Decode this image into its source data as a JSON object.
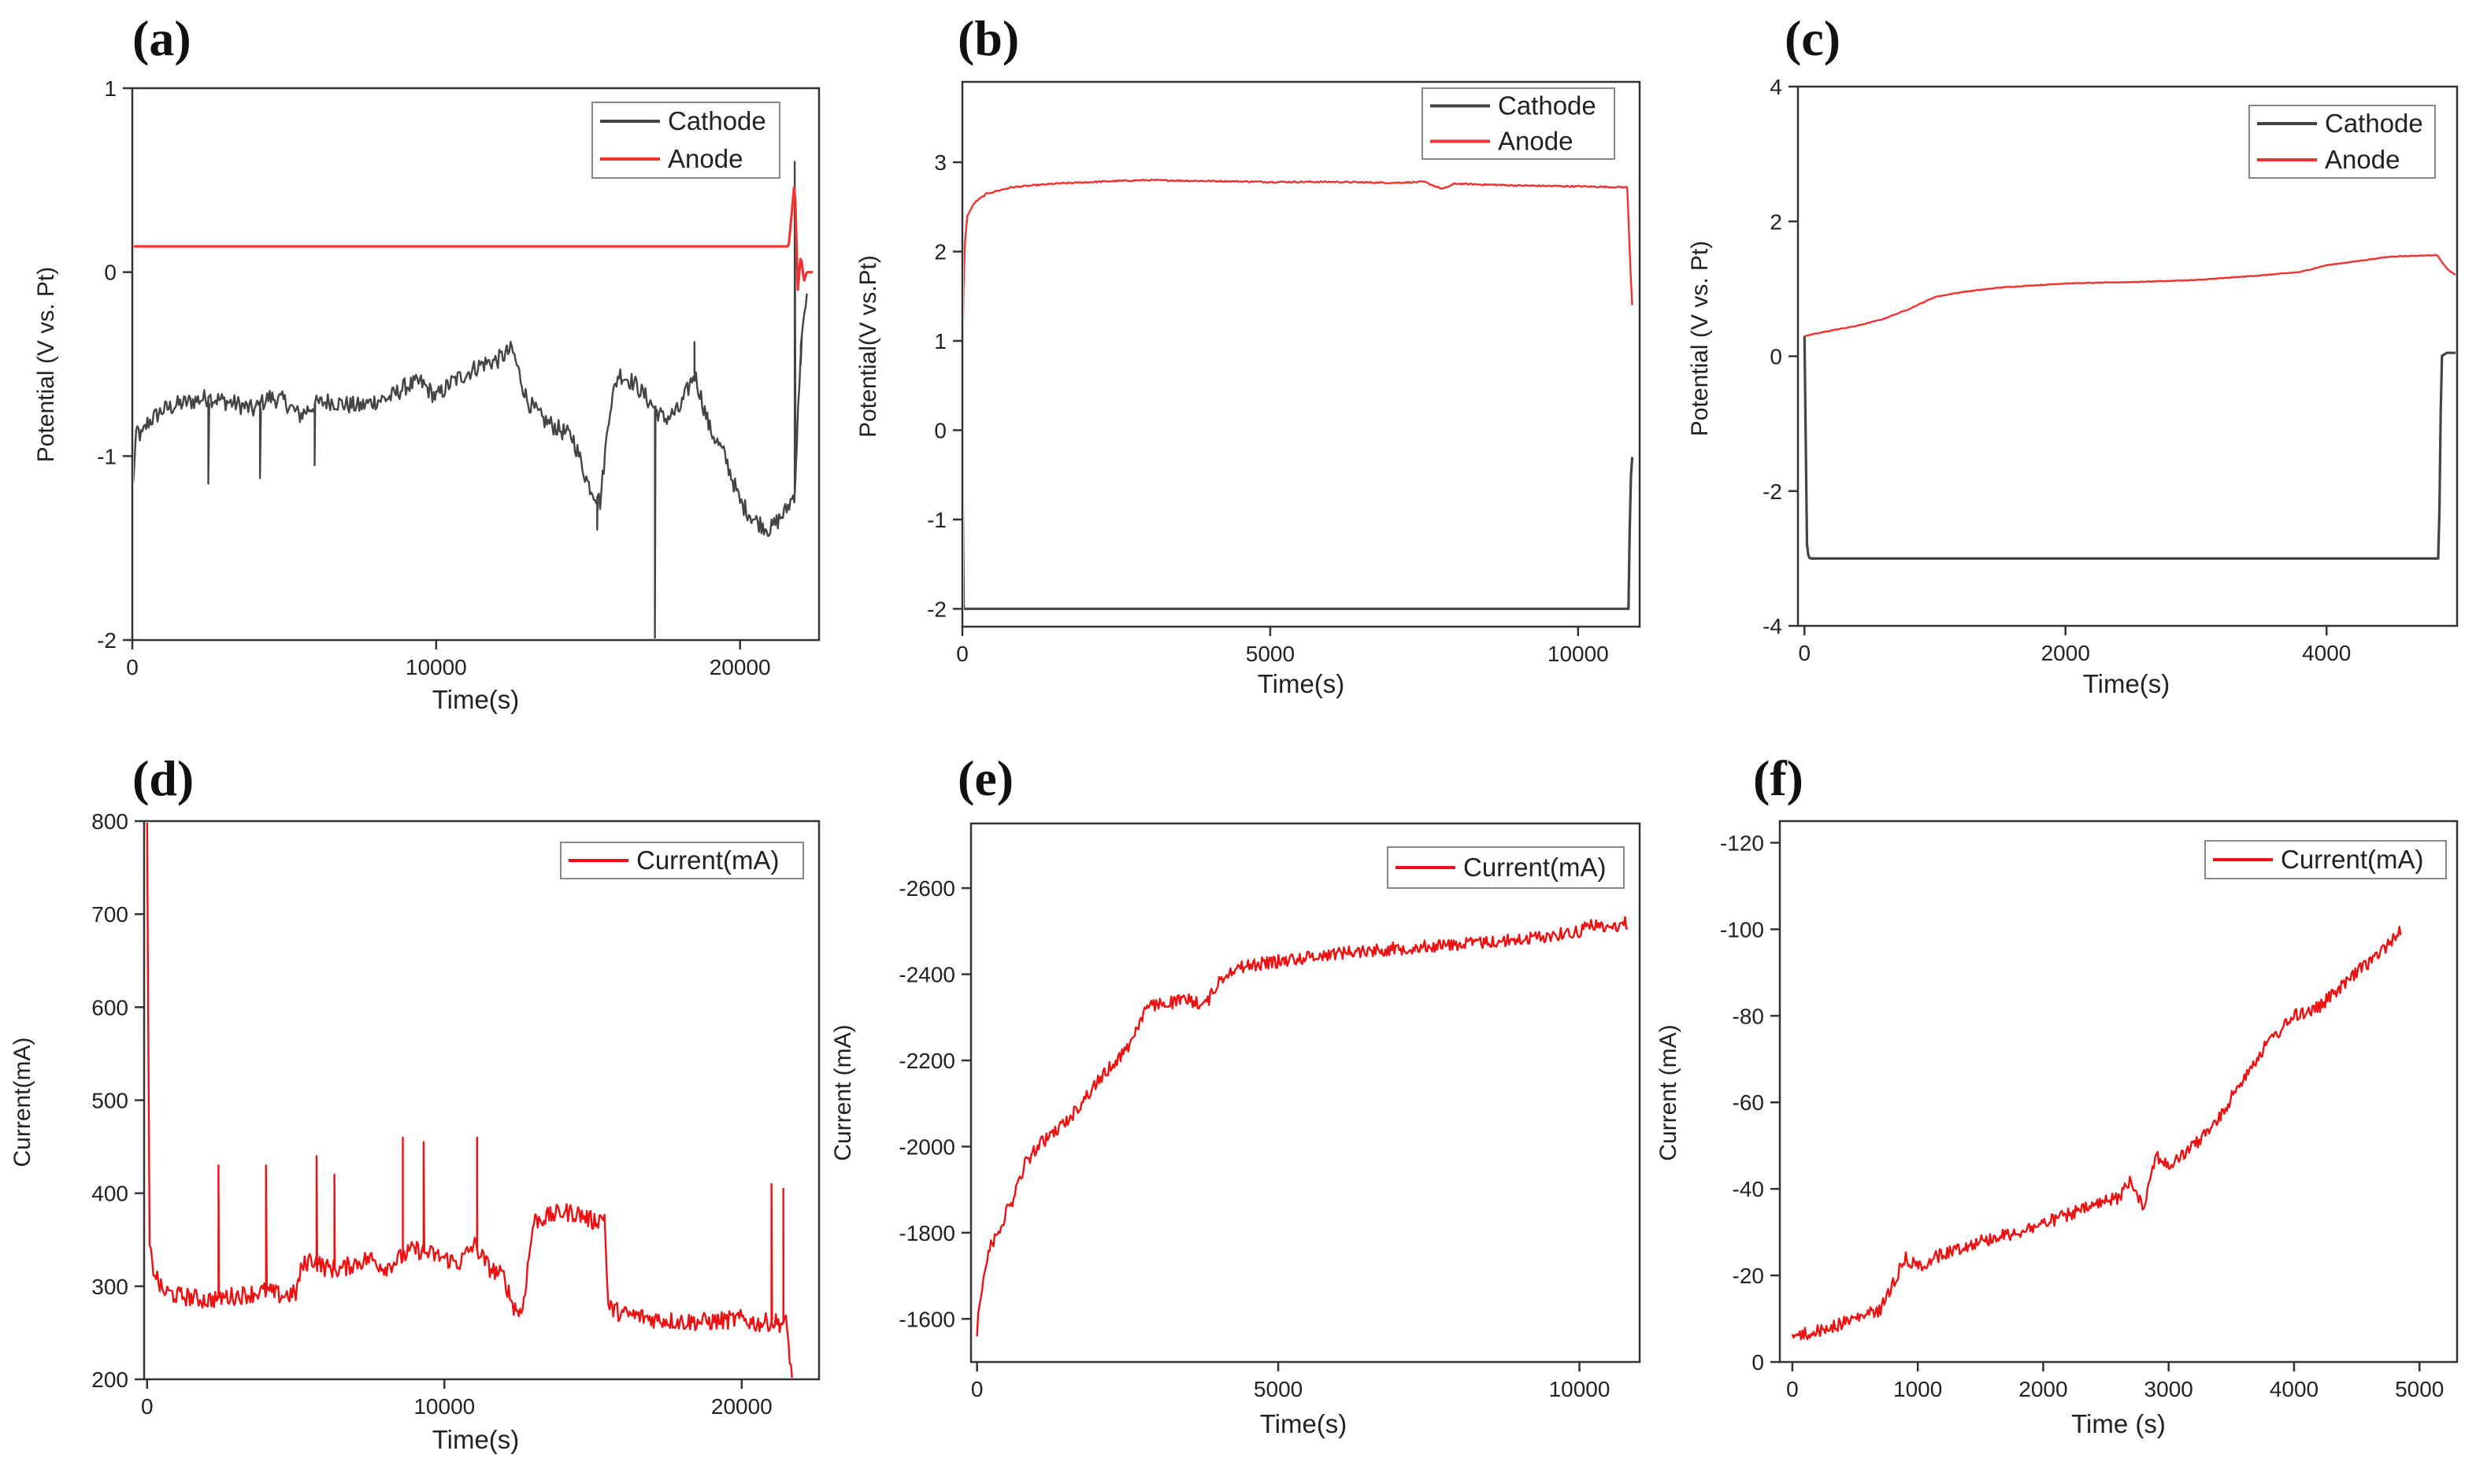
{
  "chart_data": [
    {
      "panel_label": "(a)",
      "type": "line",
      "xlabel": "Time(s)",
      "ylabel": "Potential (V vs. Pt)",
      "xlim": [
        0,
        22600
      ],
      "ylim": [
        -2,
        1
      ],
      "xticks": [
        0,
        10000,
        20000
      ],
      "xtick_labels": [
        "0",
        "10000",
        "20000"
      ],
      "yticks": [
        -2,
        -1,
        0,
        1
      ],
      "ytick_labels": [
        "-2",
        "-1",
        "0",
        "1"
      ],
      "legend": {
        "position": "top-right",
        "entries": [
          "Cathode",
          "Anode"
        ]
      },
      "series": [
        {
          "name": "Cathode",
          "color": "#444444",
          "x": [
            0,
            150,
            300,
            500,
            1000,
            1500,
            2000,
            2500,
            3000,
            3500,
            4000,
            4500,
            5000,
            5500,
            6000,
            6500,
            7000,
            7500,
            8000,
            8500,
            9000,
            9500,
            10000,
            10500,
            11000,
            11500,
            12000,
            12500,
            13000,
            13500,
            14000,
            14500,
            15000,
            15400,
            15700,
            16000,
            16500,
            17000,
            17500,
            18000,
            18500,
            19000,
            19500,
            20000,
            20500,
            21000,
            21500,
            21800,
            22000,
            22200
          ],
          "y": [
            -1.2,
            -0.85,
            -0.9,
            -0.82,
            -0.75,
            -0.72,
            -0.7,
            -0.68,
            -0.7,
            -0.72,
            -0.75,
            -0.68,
            -0.7,
            -0.78,
            -0.72,
            -0.7,
            -0.72,
            -0.73,
            -0.7,
            -0.68,
            -0.62,
            -0.6,
            -0.68,
            -0.6,
            -0.55,
            -0.5,
            -0.48,
            -0.42,
            -0.7,
            -0.8,
            -0.85,
            -0.9,
            -1.15,
            -1.25,
            -0.75,
            -0.55,
            -0.6,
            -0.7,
            -0.8,
            -0.75,
            -0.55,
            -0.85,
            -1.0,
            -1.25,
            -1.35,
            -1.4,
            -1.3,
            -1.2,
            -0.4,
            -0.15
          ],
          "noise": 0.05,
          "spikes": [
            [
              2500,
              -1.15
            ],
            [
              4200,
              -1.12
            ],
            [
              6000,
              -1.05
            ],
            [
              15300,
              -1.4
            ],
            [
              17200,
              -2.0
            ],
            [
              18500,
              -0.38
            ],
            [
              21800,
              0.6
            ],
            [
              22000,
              -0.5
            ]
          ]
        },
        {
          "name": "Anode",
          "color": "#ee3333",
          "x": [
            0,
            21600,
            21800,
            21900,
            22000,
            22100,
            22200,
            22400
          ],
          "y": [
            0.14,
            0.14,
            0.5,
            -0.1,
            0.1,
            -0.05,
            0.0,
            0.0
          ],
          "noise": 0
        }
      ]
    },
    {
      "panel_label": "(b)",
      "type": "line",
      "xlabel": "Time(s)",
      "ylabel": "Potential(V vs.Pt)",
      "xlim": [
        0,
        11000
      ],
      "ylim": [
        -2.2,
        3.9
      ],
      "xticks": [
        0,
        5000,
        10000
      ],
      "xtick_labels": [
        "0",
        "5000",
        "10000"
      ],
      "yticks": [
        -2,
        -1,
        0,
        1,
        2,
        3
      ],
      "ytick_labels": [
        "-2",
        "-1",
        "0",
        "1",
        "2",
        "3"
      ],
      "legend": {
        "position": "top-right",
        "entries": [
          "Cathode",
          "Anode"
        ]
      },
      "series": [
        {
          "name": "Cathode",
          "color": "#444444",
          "x": [
            0,
            10,
            20,
            10820,
            10850,
            10880
          ],
          "y": [
            -0.3,
            -1.95,
            -2.0,
            -2.0,
            -0.6,
            -0.3
          ],
          "noise": 0
        },
        {
          "name": "Anode",
          "color": "#ee3333",
          "x": [
            0,
            30,
            80,
            200,
            400,
            800,
            1500,
            2500,
            3000,
            4000,
            5000,
            6000,
            7000,
            7500,
            7800,
            8000,
            9000,
            10000,
            10800,
            10850,
            10880
          ],
          "y": [
            0.7,
            2.0,
            2.4,
            2.55,
            2.65,
            2.72,
            2.76,
            2.79,
            2.8,
            2.79,
            2.78,
            2.78,
            2.77,
            2.78,
            2.7,
            2.76,
            2.74,
            2.73,
            2.72,
            1.8,
            1.4
          ],
          "noise": 0.008
        }
      ]
    },
    {
      "panel_label": "(c)",
      "type": "line",
      "xlabel": "Time(s)",
      "ylabel": "Potential (V vs. Pt)",
      "xlim": [
        -50,
        5000
      ],
      "ylim": [
        -4,
        4
      ],
      "xticks": [
        0,
        2000,
        4000
      ],
      "xtick_labels": [
        "0",
        "2000",
        "4000"
      ],
      "yticks": [
        -4,
        -2,
        0,
        2,
        4
      ],
      "ytick_labels": [
        "-4",
        "-2",
        "0",
        "2",
        "4"
      ],
      "legend": {
        "position": "top-right",
        "entries": [
          "Cathode",
          "Anode"
        ]
      },
      "series": [
        {
          "name": "Cathode",
          "color": "#444444",
          "x": [
            0,
            20,
            40,
            4860,
            4880,
            4920,
            5000
          ],
          "y": [
            0.3,
            -2.9,
            -3.0,
            -3.0,
            0.0,
            0.05,
            0.05
          ],
          "noise": 0
        },
        {
          "name": "Anode",
          "color": "#ee3333",
          "x": [
            0,
            200,
            400,
            600,
            800,
            1000,
            1200,
            1500,
            2000,
            2500,
            3000,
            3500,
            3800,
            4000,
            4500,
            4850,
            4900,
            4950,
            5000
          ],
          "y": [
            0.3,
            0.38,
            0.45,
            0.55,
            0.7,
            0.88,
            0.95,
            1.02,
            1.08,
            1.1,
            1.13,
            1.2,
            1.25,
            1.35,
            1.48,
            1.5,
            1.35,
            1.25,
            1.2
          ],
          "noise": 0.005
        }
      ]
    },
    {
      "panel_label": "(d)",
      "type": "line",
      "xlabel": "Time(s)",
      "ylabel": "Current(mA)",
      "xlim": [
        -100,
        22600
      ],
      "ylim": [
        200,
        800
      ],
      "xticks": [
        0,
        10000,
        20000
      ],
      "xtick_labels": [
        "0",
        "10000",
        "20000"
      ],
      "yticks": [
        200,
        300,
        400,
        500,
        600,
        700,
        800
      ],
      "ytick_labels": [
        "200",
        "300",
        "400",
        "500",
        "600",
        "700",
        "800"
      ],
      "legend": {
        "position": "top-right",
        "entries": [
          "Current(mA)"
        ]
      },
      "series": [
        {
          "name": "Current(mA)",
          "color": "#ee1111",
          "x": [
            0,
            80,
            200,
            500,
            1000,
            1500,
            2000,
            2500,
            3000,
            3500,
            4000,
            4500,
            5000,
            5200,
            5500,
            6000,
            6500,
            7000,
            7500,
            8000,
            8500,
            9000,
            9500,
            10000,
            10500,
            11000,
            11500,
            12000,
            12300,
            12600,
            12800,
            13000,
            13500,
            14000,
            14500,
            15000,
            15400,
            15500,
            16000,
            16500,
            17000,
            18000,
            19000,
            20000,
            20500,
            21000,
            21500,
            21700
          ],
          "y": [
            800,
            340,
            320,
            295,
            290,
            288,
            285,
            288,
            290,
            292,
            295,
            290,
            292,
            320,
            330,
            320,
            318,
            325,
            330,
            320,
            330,
            340,
            335,
            330,
            325,
            345,
            320,
            310,
            280,
            270,
            320,
            370,
            375,
            380,
            378,
            370,
            375,
            278,
            270,
            268,
            265,
            262,
            262,
            265,
            260,
            262,
            260,
            200
          ],
          "noise": 10,
          "spikes": [
            [
              2400,
              430
            ],
            [
              4000,
              430
            ],
            [
              5700,
              440
            ],
            [
              6300,
              420
            ],
            [
              8600,
              460
            ],
            [
              9300,
              455
            ],
            [
              11100,
              460
            ],
            [
              21000,
              410
            ],
            [
              21400,
              405
            ]
          ]
        }
      ]
    },
    {
      "panel_label": "(e)",
      "type": "line",
      "xlabel": "Time(s)",
      "ylabel": "Current (mA)",
      "xlim": [
        -100,
        11000
      ],
      "ylim": [
        -1500,
        -2750
      ],
      "xticks": [
        0,
        5000,
        10000
      ],
      "xtick_labels": [
        "0",
        "5000",
        "10000"
      ],
      "yticks": [
        -1600,
        -1800,
        -2000,
        -2200,
        -2400,
        -2600
      ],
      "ytick_labels": [
        "-1600",
        "-1800",
        "-2000",
        "-2200",
        "-2400",
        "-2600"
      ],
      "legend": {
        "position": "top-right",
        "entries": [
          "Current(mA)"
        ]
      },
      "series": [
        {
          "name": "Current(mA)",
          "color": "#ee1111",
          "x": [
            0,
            30,
            100,
            200,
            400,
            600,
            800,
            1000,
            1500,
            2000,
            2500,
            2800,
            3000,
            3500,
            3800,
            4000,
            4200,
            4500,
            5000,
            5500,
            6000,
            7000,
            8000,
            9000,
            10000,
            10200,
            10400,
            10800
          ],
          "y": [
            -1570,
            -1620,
            -1700,
            -1760,
            -1820,
            -1880,
            -1960,
            -2000,
            -2060,
            -2150,
            -2230,
            -2320,
            -2330,
            -2340,
            -2330,
            -2380,
            -2410,
            -2420,
            -2430,
            -2440,
            -2450,
            -2460,
            -2470,
            -2480,
            -2500,
            -2520,
            -2505,
            -2520
          ],
          "noise": 15
        }
      ]
    },
    {
      "panel_label": "(f)",
      "type": "line",
      "xlabel": "Time (s)",
      "ylabel": "Current (mA)",
      "xlim": [
        -100,
        5300
      ],
      "ylim": [
        0,
        -125
      ],
      "xticks": [
        0,
        1000,
        2000,
        3000,
        4000,
        5000
      ],
      "xtick_labels": [
        "0",
        "1000",
        "2000",
        "3000",
        "4000",
        "5000"
      ],
      "yticks": [
        0,
        -20,
        -40,
        -60,
        -80,
        -100,
        -120
      ],
      "ytick_labels": [
        "0",
        "-20",
        "-40",
        "-60",
        "-80",
        "-100",
        "-120"
      ],
      "legend": {
        "position": "top-right",
        "entries": [
          "Current(mA)"
        ]
      },
      "series": [
        {
          "name": "Current(mA)",
          "color": "#ee1111",
          "x": [
            0,
            200,
            400,
            600,
            700,
            800,
            900,
            1000,
            1200,
            1500,
            1800,
            2000,
            2300,
            2600,
            2700,
            2800,
            2900,
            3000,
            3200,
            3400,
            3600,
            3800,
            4000,
            4200,
            4500,
            4700,
            4850
          ],
          "y": [
            -6,
            -7,
            -9,
            -11,
            -12,
            -18,
            -24,
            -22,
            -25,
            -28,
            -30,
            -32,
            -35,
            -38,
            -42,
            -36,
            -48,
            -45,
            -50,
            -56,
            -66,
            -74,
            -80,
            -82,
            -90,
            -95,
            -100
          ],
          "noise": 1.5
        }
      ]
    }
  ]
}
